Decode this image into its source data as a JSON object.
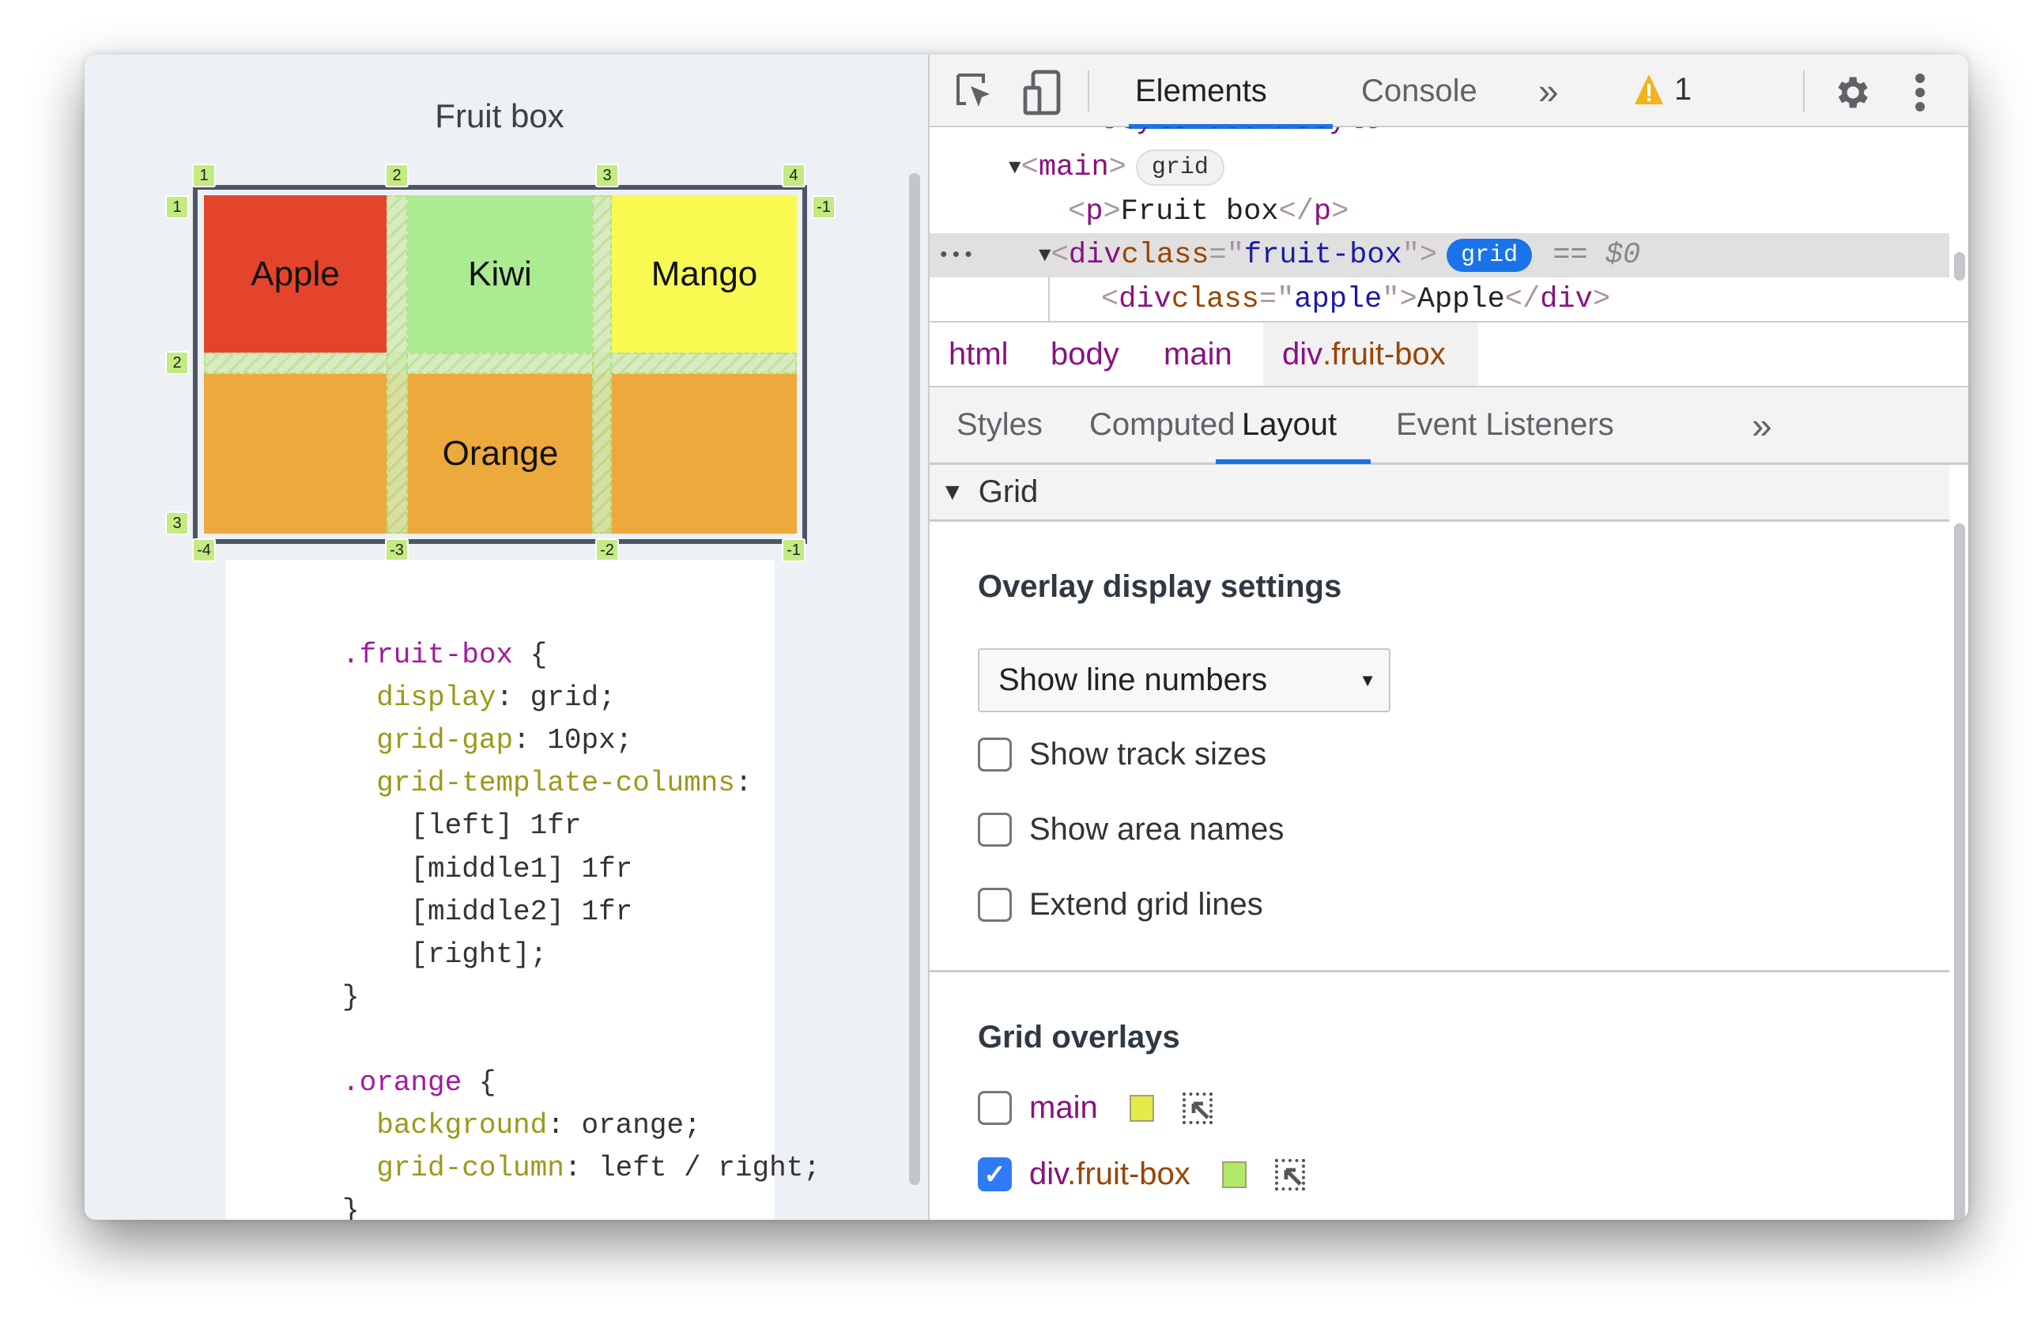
{
  "page": {
    "title": "Fruit box",
    "cells": {
      "apple": "Apple",
      "kiwi": "Kiwi",
      "mango": "Mango",
      "orange": "Orange"
    },
    "colors": {
      "apple": "#e5442c",
      "kiwi": "#abeb92",
      "mango": "#f8fa52",
      "orange": "#eca93c",
      "overlay": "#c3eb82"
    },
    "line_numbers": {
      "top": [
        "1",
        "2",
        "3",
        "4"
      ],
      "bottom": [
        "-4",
        "-3",
        "-2",
        "-1"
      ],
      "left": [
        "1",
        "2",
        "3"
      ],
      "right": [
        "-1"
      ]
    },
    "code": [
      [
        {
          "c": "sel",
          "t": ".fruit-box"
        },
        {
          "c": "",
          "t": " {"
        }
      ],
      [
        {
          "c": "",
          "t": "  "
        },
        {
          "c": "prop",
          "t": "display"
        },
        {
          "c": "",
          "t": ": grid;"
        }
      ],
      [
        {
          "c": "",
          "t": "  "
        },
        {
          "c": "prop",
          "t": "grid-gap"
        },
        {
          "c": "",
          "t": ": 10px;"
        }
      ],
      [
        {
          "c": "",
          "t": "  "
        },
        {
          "c": "prop",
          "t": "grid-template-columns"
        },
        {
          "c": "",
          "t": ":"
        }
      ],
      [
        {
          "c": "",
          "t": "    [left] 1fr"
        }
      ],
      [
        {
          "c": "",
          "t": "    [middle1] 1fr"
        }
      ],
      [
        {
          "c": "",
          "t": "    [middle2] 1fr"
        }
      ],
      [
        {
          "c": "",
          "t": "    [right];"
        }
      ],
      [
        {
          "c": "",
          "t": "}"
        }
      ],
      [
        {
          "c": "",
          "t": ""
        }
      ],
      [
        {
          "c": "sel",
          "t": ".orange"
        },
        {
          "c": "",
          "t": " {"
        }
      ],
      [
        {
          "c": "",
          "t": "  "
        },
        {
          "c": "prop",
          "t": "background"
        },
        {
          "c": "",
          "t": ": orange;"
        }
      ],
      [
        {
          "c": "",
          "t": "  "
        },
        {
          "c": "prop",
          "t": "grid-column"
        },
        {
          "c": "",
          "t": ": left / right;"
        }
      ],
      [
        {
          "c": "",
          "t": "}"
        }
      ]
    ]
  },
  "devtools": {
    "tabs": [
      "Elements",
      "Console"
    ],
    "more": "»",
    "warning_count": "1",
    "dom": {
      "main_tag": "main",
      "grid_badge": "grid",
      "p_open": "p",
      "p_text": "Fruit box",
      "div": "div",
      "class_attr": "class",
      "fruit_box": "fruit-box",
      "selected_marker": "== $0",
      "apple_class": "apple",
      "apple_text": "Apple",
      "ellipsis": "•••"
    },
    "breadcrumbs": [
      "html",
      "body",
      "main",
      "div.fruit-box"
    ],
    "subtabs": [
      "Styles",
      "Computed",
      "Layout",
      "Event Listeners"
    ],
    "active_subtab": "Layout",
    "section": "Grid",
    "overlay_heading": "Overlay display settings",
    "select_value": "Show line numbers",
    "checkboxes": [
      {
        "label": "Show track sizes",
        "checked": false
      },
      {
        "label": "Show area names",
        "checked": false
      },
      {
        "label": "Extend grid lines",
        "checked": false
      }
    ],
    "overlays_heading": "Grid overlays",
    "overlays": [
      {
        "label_tag": "main",
        "label_class": "",
        "checked": false,
        "color": "#e3eb4a"
      },
      {
        "label_tag": "div",
        "label_class": ".fruit-box",
        "checked": true,
        "color": "#b0e86a"
      }
    ]
  }
}
